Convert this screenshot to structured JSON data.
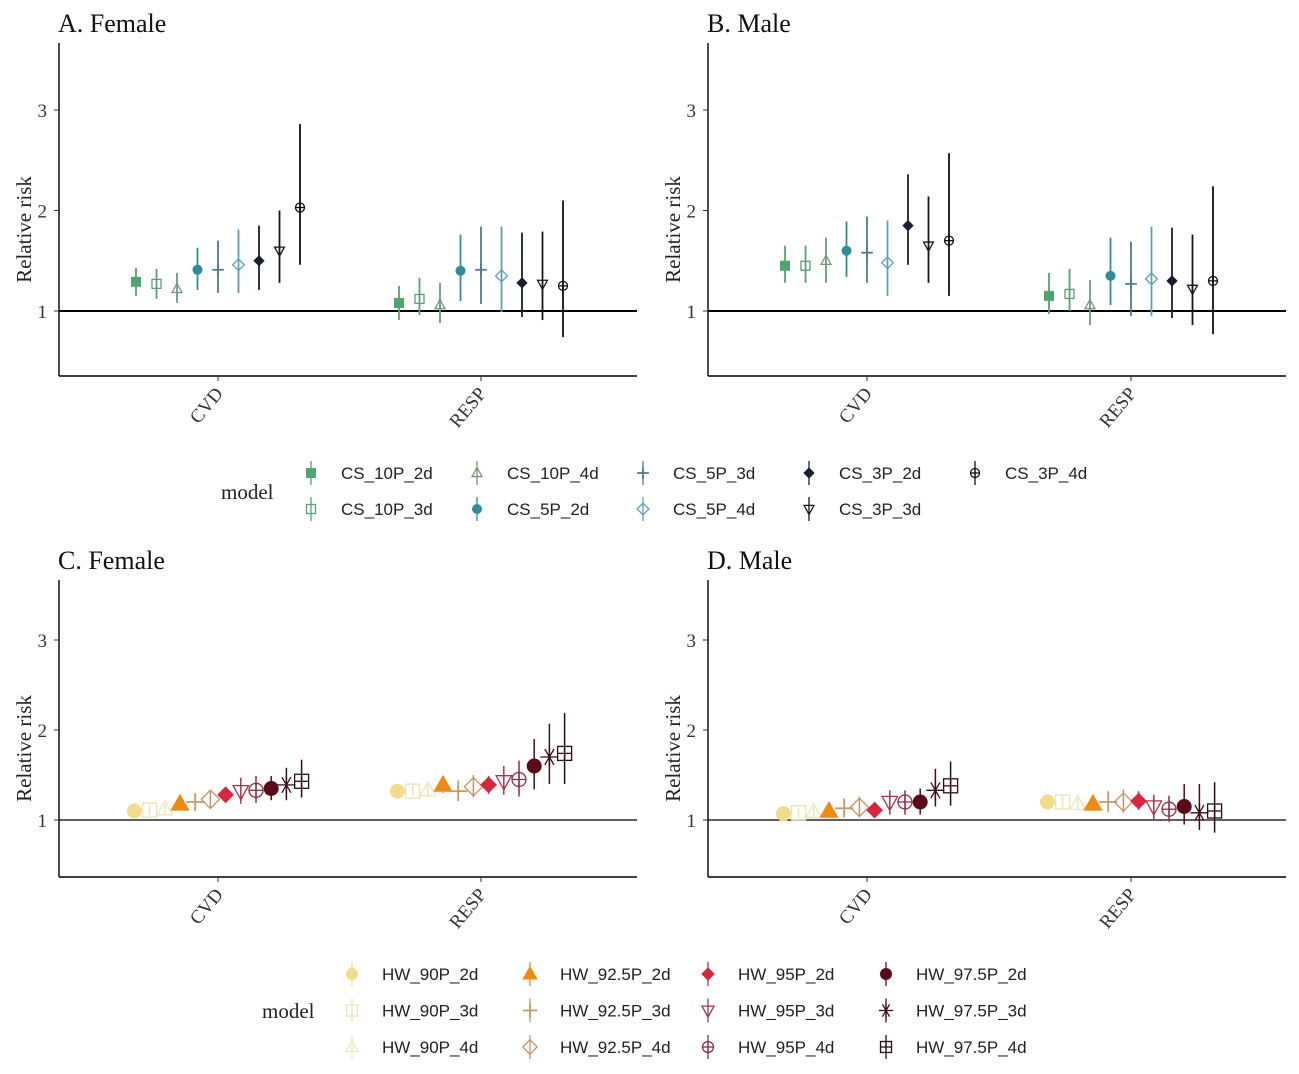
{
  "chart_data": [
    {
      "type": "scatter",
      "subtype": "point-range",
      "title": "A. Female",
      "xlabel": "",
      "ylabel": "Relative risk",
      "categories": [
        "CVD",
        "RESP"
      ],
      "yticks": [
        1,
        2,
        3
      ],
      "ylim": [
        0.35,
        3.67
      ],
      "reference_line": 1,
      "legend_group": "cs",
      "series": [
        {
          "name": "CS_10P_2d",
          "values": [
            1.29,
            1.08
          ],
          "lower": [
            1.15,
            0.91
          ],
          "upper": [
            1.43,
            1.25
          ]
        },
        {
          "name": "CS_10P_3d",
          "values": [
            1.27,
            1.12
          ],
          "lower": [
            1.12,
            0.96
          ],
          "upper": [
            1.42,
            1.33
          ]
        },
        {
          "name": "CS_10P_4d",
          "values": [
            1.22,
            1.06
          ],
          "lower": [
            1.08,
            0.88
          ],
          "upper": [
            1.38,
            1.28
          ]
        },
        {
          "name": "CS_5P_2d",
          "values": [
            1.41,
            1.4
          ],
          "lower": [
            1.21,
            1.1
          ],
          "upper": [
            1.63,
            1.76
          ]
        },
        {
          "name": "CS_5P_3d",
          "values": [
            1.41,
            1.41
          ],
          "lower": [
            1.18,
            1.07
          ],
          "upper": [
            1.7,
            1.84
          ]
        },
        {
          "name": "CS_5P_4d",
          "values": [
            1.46,
            1.35
          ],
          "lower": [
            1.18,
            0.99
          ],
          "upper": [
            1.81,
            1.84
          ]
        },
        {
          "name": "CS_3P_2d",
          "values": [
            1.5,
            1.28
          ],
          "lower": [
            1.21,
            0.94
          ],
          "upper": [
            1.85,
            1.78
          ]
        },
        {
          "name": "CS_3P_3d",
          "values": [
            1.6,
            1.27
          ],
          "lower": [
            1.28,
            0.91
          ],
          "upper": [
            2.0,
            1.79
          ]
        },
        {
          "name": "CS_3P_4d",
          "values": [
            2.03,
            1.25
          ],
          "lower": [
            1.46,
            0.74
          ],
          "upper": [
            2.86,
            2.1
          ]
        }
      ]
    },
    {
      "type": "scatter",
      "subtype": "point-range",
      "title": "B. Male",
      "xlabel": "",
      "ylabel": "Relative risk",
      "categories": [
        "CVD",
        "RESP"
      ],
      "yticks": [
        1,
        2,
        3
      ],
      "ylim": [
        0.35,
        3.67
      ],
      "reference_line": 1,
      "legend_group": "cs",
      "series": [
        {
          "name": "CS_10P_2d",
          "values": [
            1.45,
            1.15
          ],
          "lower": [
            1.28,
            0.97
          ],
          "upper": [
            1.65,
            1.38
          ]
        },
        {
          "name": "CS_10P_3d",
          "values": [
            1.45,
            1.17
          ],
          "lower": [
            1.28,
            1.0
          ],
          "upper": [
            1.65,
            1.42
          ]
        },
        {
          "name": "CS_10P_4d",
          "values": [
            1.5,
            1.06
          ],
          "lower": [
            1.28,
            0.86
          ],
          "upper": [
            1.73,
            1.31
          ]
        },
        {
          "name": "CS_5P_2d",
          "values": [
            1.6,
            1.35
          ],
          "lower": [
            1.34,
            1.06
          ],
          "upper": [
            1.89,
            1.73
          ]
        },
        {
          "name": "CS_5P_3d",
          "values": [
            1.58,
            1.27
          ],
          "lower": [
            1.28,
            0.95
          ],
          "upper": [
            1.94,
            1.69
          ]
        },
        {
          "name": "CS_5P_4d",
          "values": [
            1.48,
            1.32
          ],
          "lower": [
            1.15,
            0.95
          ],
          "upper": [
            1.9,
            1.84
          ]
        },
        {
          "name": "CS_3P_2d",
          "values": [
            1.85,
            1.3
          ],
          "lower": [
            1.46,
            0.93
          ],
          "upper": [
            2.36,
            1.83
          ]
        },
        {
          "name": "CS_3P_3d",
          "values": [
            1.65,
            1.22
          ],
          "lower": [
            1.28,
            0.86
          ],
          "upper": [
            2.14,
            1.76
          ]
        },
        {
          "name": "CS_3P_4d",
          "values": [
            1.7,
            1.3
          ],
          "lower": [
            1.15,
            0.77
          ],
          "upper": [
            2.57,
            2.24
          ]
        }
      ]
    },
    {
      "type": "scatter",
      "subtype": "point-range",
      "title": "C. Female",
      "xlabel": "",
      "ylabel": "Relative risk",
      "categories": [
        "CVD",
        "RESP"
      ],
      "yticks": [
        1,
        2,
        3
      ],
      "ylim": [
        0.37,
        3.67
      ],
      "reference_line": 1,
      "legend_group": "hw",
      "series": [
        {
          "name": "HW_90P_2d",
          "values": [
            1.1,
            1.32
          ],
          "lower": [
            1.05,
            1.27
          ],
          "upper": [
            1.15,
            1.37
          ]
        },
        {
          "name": "HW_90P_3d",
          "values": [
            1.11,
            1.32
          ],
          "lower": [
            1.06,
            1.27
          ],
          "upper": [
            1.16,
            1.38
          ]
        },
        {
          "name": "HW_90P_4d",
          "values": [
            1.12,
            1.33
          ],
          "lower": [
            1.06,
            1.27
          ],
          "upper": [
            1.18,
            1.4
          ]
        },
        {
          "name": "HW_92.5P_2d",
          "values": [
            1.18,
            1.39
          ],
          "lower": [
            1.12,
            1.3
          ],
          "upper": [
            1.24,
            1.48
          ]
        },
        {
          "name": "HW_92.5P_3d",
          "values": [
            1.2,
            1.32
          ],
          "lower": [
            1.12,
            1.21
          ],
          "upper": [
            1.28,
            1.44
          ]
        },
        {
          "name": "HW_92.5P_4d",
          "values": [
            1.23,
            1.37
          ],
          "lower": [
            1.13,
            1.25
          ],
          "upper": [
            1.33,
            1.5
          ]
        },
        {
          "name": "HW_95P_2d",
          "values": [
            1.28,
            1.39
          ],
          "lower": [
            1.21,
            1.29
          ],
          "upper": [
            1.35,
            1.49
          ]
        },
        {
          "name": "HW_95P_3d",
          "values": [
            1.32,
            1.43
          ],
          "lower": [
            1.18,
            1.28
          ],
          "upper": [
            1.47,
            1.6
          ]
        },
        {
          "name": "HW_95P_4d",
          "values": [
            1.33,
            1.45
          ],
          "lower": [
            1.19,
            1.26
          ],
          "upper": [
            1.49,
            1.66
          ]
        },
        {
          "name": "HW_97.5P_2d",
          "values": [
            1.35,
            1.6
          ],
          "lower": [
            1.22,
            1.34
          ],
          "upper": [
            1.49,
            1.9
          ]
        },
        {
          "name": "HW_97.5P_3d",
          "values": [
            1.39,
            1.7
          ],
          "lower": [
            1.22,
            1.4
          ],
          "upper": [
            1.58,
            2.07
          ]
        },
        {
          "name": "HW_97.5P_4d",
          "values": [
            1.43,
            1.74
          ],
          "lower": [
            1.25,
            1.4
          ],
          "upper": [
            1.67,
            2.19
          ]
        }
      ]
    },
    {
      "type": "scatter",
      "subtype": "point-range",
      "title": "D. Male",
      "xlabel": "",
      "ylabel": "Relative risk",
      "categories": [
        "CVD",
        "RESP"
      ],
      "yticks": [
        1,
        2,
        3
      ],
      "ylim": [
        0.37,
        3.67
      ],
      "reference_line": 1,
      "legend_group": "hw",
      "series": [
        {
          "name": "HW_90P_2d",
          "values": [
            1.07,
            1.2
          ],
          "lower": [
            1.03,
            1.15
          ],
          "upper": [
            1.11,
            1.25
          ]
        },
        {
          "name": "HW_90P_3d",
          "values": [
            1.08,
            1.2
          ],
          "lower": [
            1.03,
            1.14
          ],
          "upper": [
            1.13,
            1.26
          ]
        },
        {
          "name": "HW_90P_4d",
          "values": [
            1.09,
            1.18
          ],
          "lower": [
            1.03,
            1.12
          ],
          "upper": [
            1.15,
            1.25
          ]
        },
        {
          "name": "HW_92.5P_2d",
          "values": [
            1.1,
            1.18
          ],
          "lower": [
            1.03,
            1.1
          ],
          "upper": [
            1.17,
            1.27
          ]
        },
        {
          "name": "HW_92.5P_3d",
          "values": [
            1.13,
            1.2
          ],
          "lower": [
            1.03,
            1.09
          ],
          "upper": [
            1.24,
            1.32
          ]
        },
        {
          "name": "HW_92.5P_4d",
          "values": [
            1.14,
            1.2
          ],
          "lower": [
            1.03,
            1.08
          ],
          "upper": [
            1.26,
            1.34
          ]
        },
        {
          "name": "HW_95P_2d",
          "values": [
            1.11,
            1.21
          ],
          "lower": [
            1.03,
            1.11
          ],
          "upper": [
            1.2,
            1.32
          ]
        },
        {
          "name": "HW_95P_3d",
          "values": [
            1.2,
            1.15
          ],
          "lower": [
            1.06,
            1.01
          ],
          "upper": [
            1.33,
            1.28
          ]
        },
        {
          "name": "HW_95P_4d",
          "values": [
            1.2,
            1.12
          ],
          "lower": [
            1.06,
            0.98
          ],
          "upper": [
            1.33,
            1.27
          ]
        },
        {
          "name": "HW_97.5P_2d",
          "values": [
            1.2,
            1.15
          ],
          "lower": [
            1.06,
            0.95
          ],
          "upper": [
            1.35,
            1.4
          ]
        },
        {
          "name": "HW_97.5P_3d",
          "values": [
            1.33,
            1.08
          ],
          "lower": [
            1.15,
            0.89
          ],
          "upper": [
            1.57,
            1.4
          ]
        },
        {
          "name": "HW_97.5P_4d",
          "values": [
            1.38,
            1.1
          ],
          "lower": [
            1.16,
            0.86
          ],
          "upper": [
            1.65,
            1.42
          ]
        }
      ]
    }
  ],
  "legends": {
    "cs": {
      "title": "model",
      "items": [
        {
          "name": "CS_10P_2d",
          "shape": "square-filled",
          "color": "#4ea76e"
        },
        {
          "name": "CS_10P_3d",
          "shape": "square-open",
          "color": "#5e9e78"
        },
        {
          "name": "CS_10P_4d",
          "shape": "triangle-open",
          "color": "#6e9a78"
        },
        {
          "name": "CS_5P_2d",
          "shape": "circle-filled",
          "color": "#2f8c9a"
        },
        {
          "name": "CS_5P_3d",
          "shape": "plus",
          "color": "#4e7e8a"
        },
        {
          "name": "CS_5P_4d",
          "shape": "diamond-open",
          "color": "#5fa0b8"
        },
        {
          "name": "CS_3P_2d",
          "shape": "diamond-filled",
          "color": "#1a1f2e"
        },
        {
          "name": "CS_3P_3d",
          "shape": "triangle-down-open",
          "color": "#15171c"
        },
        {
          "name": "CS_3P_4d",
          "shape": "circle-plus",
          "color": "#0f1115"
        }
      ]
    },
    "hw": {
      "title": "model",
      "items": [
        {
          "name": "HW_90P_2d",
          "shape": "circle-filled",
          "color": "#f1dc8a"
        },
        {
          "name": "HW_90P_3d",
          "shape": "square-open",
          "color": "#eee2b4"
        },
        {
          "name": "HW_90P_4d",
          "shape": "triangle-open",
          "color": "#efe4ba"
        },
        {
          "name": "HW_92.5P_2d",
          "shape": "triangle-filled",
          "color": "#f08a12"
        },
        {
          "name": "HW_92.5P_3d",
          "shape": "plus",
          "color": "#c79a6a"
        },
        {
          "name": "HW_92.5P_4d",
          "shape": "diamond-open",
          "color": "#c99465"
        },
        {
          "name": "HW_95P_2d",
          "shape": "diamond-filled",
          "color": "#d7263d"
        },
        {
          "name": "HW_95P_3d",
          "shape": "triangle-down-open",
          "color": "#a8364a"
        },
        {
          "name": "HW_95P_4d",
          "shape": "circle-plus",
          "color": "#8e2f45"
        },
        {
          "name": "HW_97.5P_2d",
          "shape": "circle-filled",
          "color": "#5a0a18"
        },
        {
          "name": "HW_97.5P_3d",
          "shape": "asterisk",
          "color": "#3a0f1a"
        },
        {
          "name": "HW_97.5P_4d",
          "shape": "square-plus",
          "color": "#2a0c14"
        }
      ]
    }
  }
}
